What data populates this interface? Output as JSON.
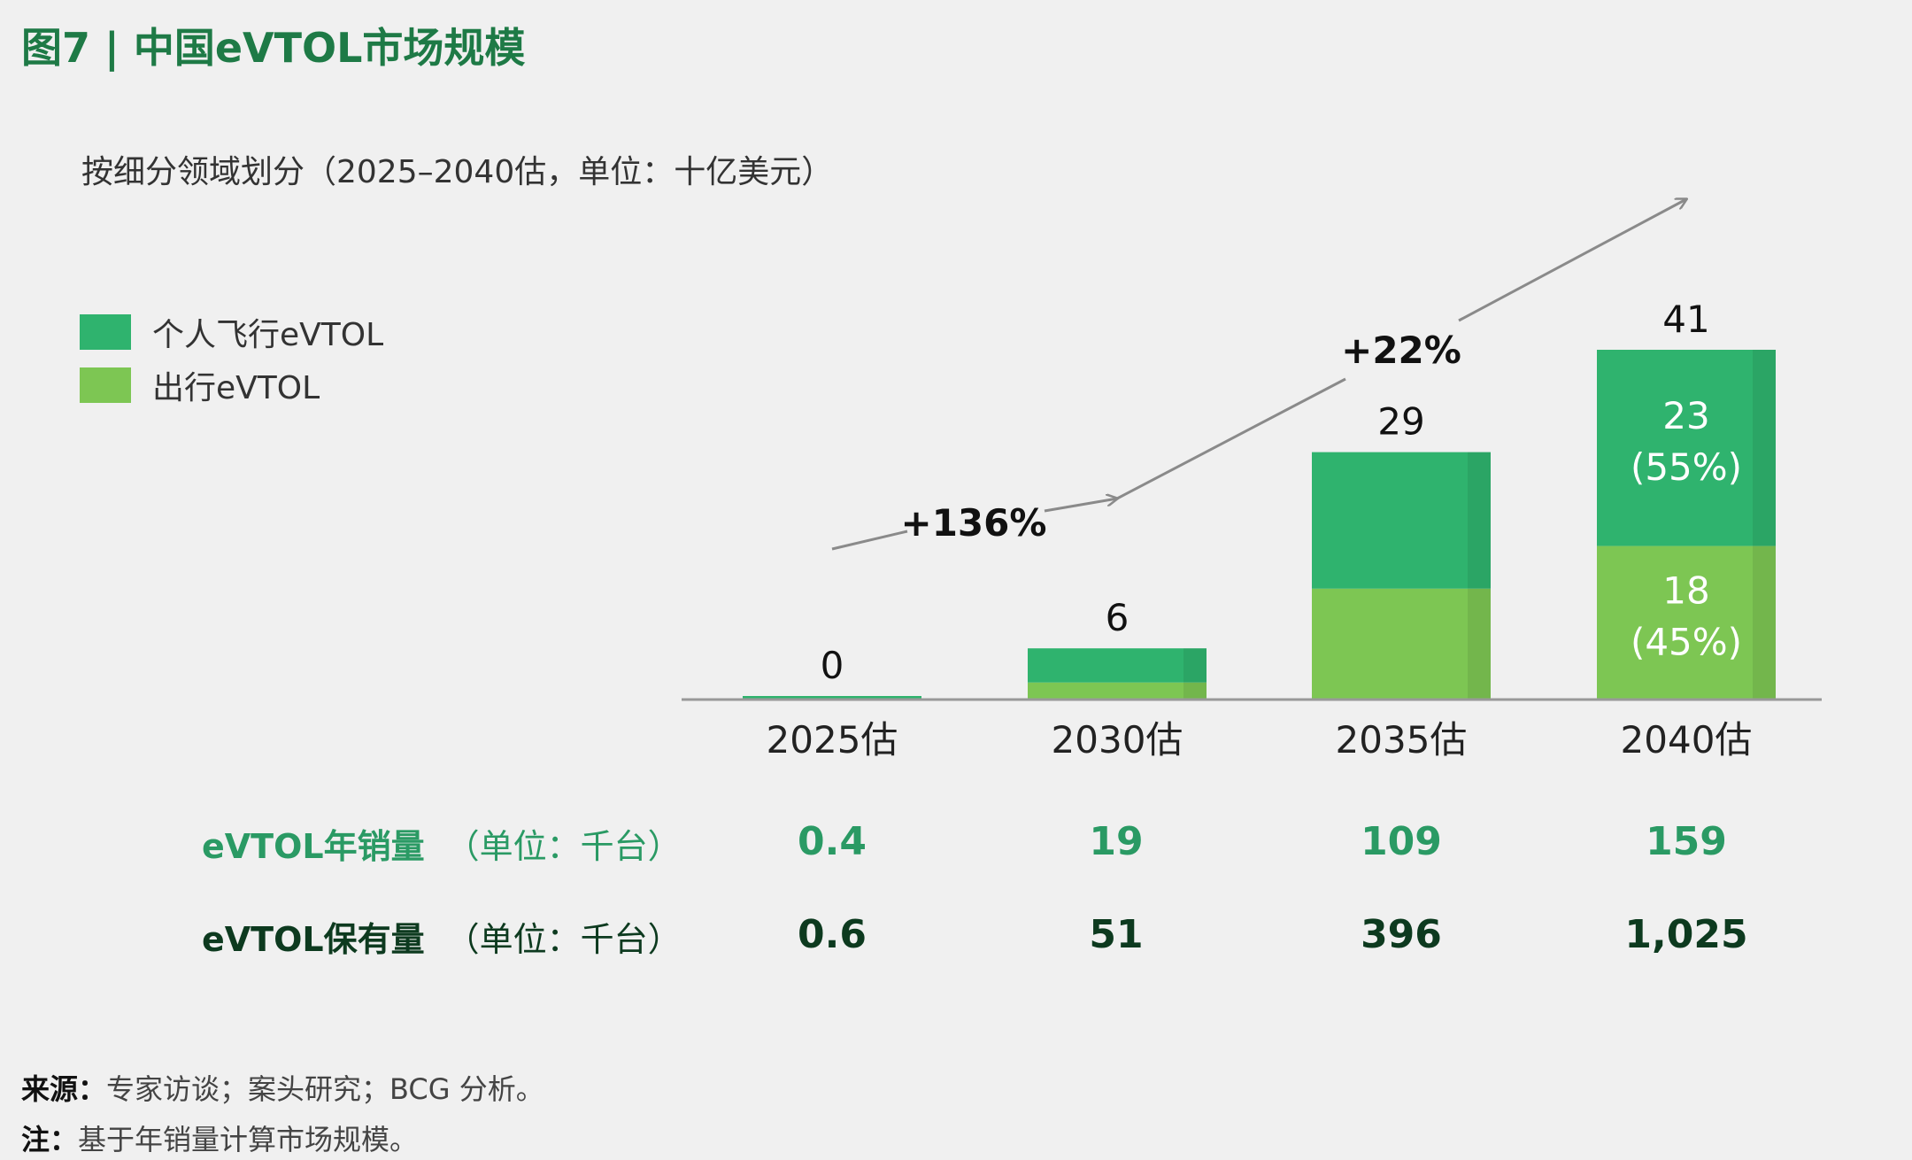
{
  "title": "图7 | 中国eVTOL市场规模",
  "subtitle": "按细分领域划分（2025–2040估，单位：十亿美元）",
  "colors": {
    "personal": "#2fb36e",
    "mobility": "#7dc653",
    "title": "#1e7a46",
    "sales_row": "#2a9a64",
    "fleet_row": "#0d3a1f",
    "axis": "#999999",
    "arrow": "#8a8a8a"
  },
  "chart_data": {
    "type": "bar",
    "stacked": true,
    "categories": [
      "2025估",
      "2030估",
      "2035估",
      "2040估"
    ],
    "series": [
      {
        "name": "出行eVTOL",
        "values": [
          0,
          2,
          13,
          18
        ],
        "labels": [
          "",
          "",
          "",
          "18\n(45%)"
        ]
      },
      {
        "name": "个人飞行eVTOL",
        "values": [
          0,
          4,
          16,
          23
        ],
        "labels": [
          "",
          "",
          "",
          "23\n(55%)"
        ]
      }
    ],
    "totals": [
      "0",
      "6",
      "29",
      "41"
    ],
    "ylim": [
      0,
      41
    ],
    "growth_labels": [
      "+136%",
      "+22%"
    ],
    "legend_position": "top-left"
  },
  "table": {
    "sales": {
      "label": "eVTOL年销量",
      "unit": "（单位：千台）",
      "values": [
        "0.4",
        "19",
        "109",
        "159"
      ]
    },
    "fleet": {
      "label": "eVTOL保有量",
      "unit": "（单位：千台）",
      "values": [
        "0.6",
        "51",
        "396",
        "1,025"
      ]
    }
  },
  "footnotes": {
    "source_label": "来源：",
    "source_text": "专家访谈；案头研究；BCG 分析。",
    "note_label": "注：",
    "note_text": "基于年销量计算市场规模。"
  }
}
